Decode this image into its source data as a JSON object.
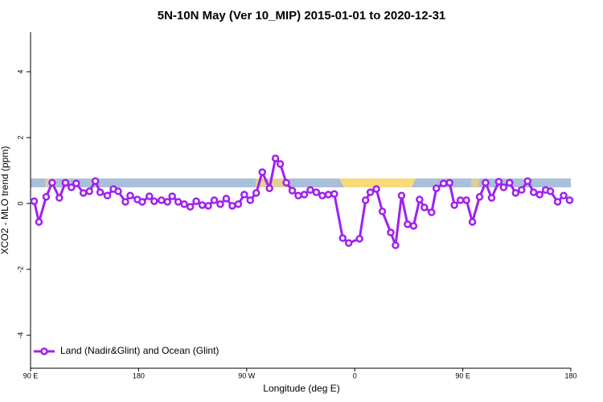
{
  "chart_data": {
    "type": "line",
    "title": "5N-10N May (Ver 10_MIP)   2015-01-01 to 2020-12-31",
    "x_label": "Longitude (deg E)",
    "y_label": "XCO2 - MLO trend (ppm)",
    "xlim": [
      90,
      540
    ],
    "ylim": [
      -5,
      5.2
    ],
    "xticks": [
      {
        "value": 90,
        "label": "90 E"
      },
      {
        "value": 180,
        "label": "180"
      },
      {
        "value": 270,
        "label": "90 W"
      },
      {
        "value": 360,
        "label": "0"
      },
      {
        "value": 450,
        "label": "90 E"
      },
      {
        "value": 540,
        "label": "180"
      }
    ],
    "yticks": [
      -4,
      -2,
      0,
      2,
      4
    ],
    "legend": "bottom-left",
    "x": [
      93,
      97,
      103,
      108,
      114,
      119,
      124,
      128,
      134,
      139,
      144,
      148,
      154,
      159,
      163,
      169,
      173,
      179,
      183,
      189,
      193,
      199,
      204,
      208,
      213,
      218,
      223,
      228,
      233,
      238,
      243,
      248,
      253,
      258,
      263,
      268,
      273,
      278,
      283,
      289,
      294,
      298,
      303,
      308,
      313,
      318,
      323,
      328,
      333,
      338,
      343,
      350,
      355,
      364,
      369,
      373,
      378,
      383,
      390,
      394,
      399,
      404,
      409,
      414,
      418,
      424,
      428,
      434,
      439,
      443,
      448,
      453,
      458,
      464,
      469,
      474,
      480,
      484,
      489,
      494,
      499,
      504,
      509,
      514,
      519,
      523,
      529,
      534,
      539
    ],
    "series": [
      {
        "name": "Land (Nadir&Glint) and Ocean (Glint)",
        "color": "#a020f0",
        "values": [
          0.07,
          -0.56,
          0.2,
          0.63,
          0.17,
          0.63,
          0.49,
          0.61,
          0.32,
          0.37,
          0.68,
          0.34,
          0.24,
          0.44,
          0.37,
          0.05,
          0.24,
          0.12,
          0.05,
          0.22,
          0.07,
          0.1,
          0.05,
          0.22,
          0.05,
          -0.02,
          -0.1,
          0.07,
          -0.05,
          -0.07,
          0.1,
          -0.02,
          0.15,
          -0.07,
          -0.02,
          0.27,
          0.1,
          0.32,
          0.95,
          0.46,
          1.37,
          1.2,
          0.63,
          0.39,
          0.24,
          0.27,
          0.41,
          0.34,
          0.24,
          0.27,
          0.29,
          -1.05,
          -1.2,
          -1.07,
          0.1,
          0.34,
          0.44,
          -0.24,
          -0.88,
          -1.27,
          0.24,
          -0.63,
          -0.68,
          0.12,
          -0.12,
          -0.27,
          0.46,
          0.61,
          0.63,
          -0.05,
          0.1,
          0.1,
          -0.56,
          0.2,
          0.63,
          0.17,
          0.66,
          0.49,
          0.63,
          0.32,
          0.41,
          0.68,
          0.34,
          0.27,
          0.41,
          0.37,
          0.05,
          0.24,
          0.1
        ]
      }
    ]
  }
}
